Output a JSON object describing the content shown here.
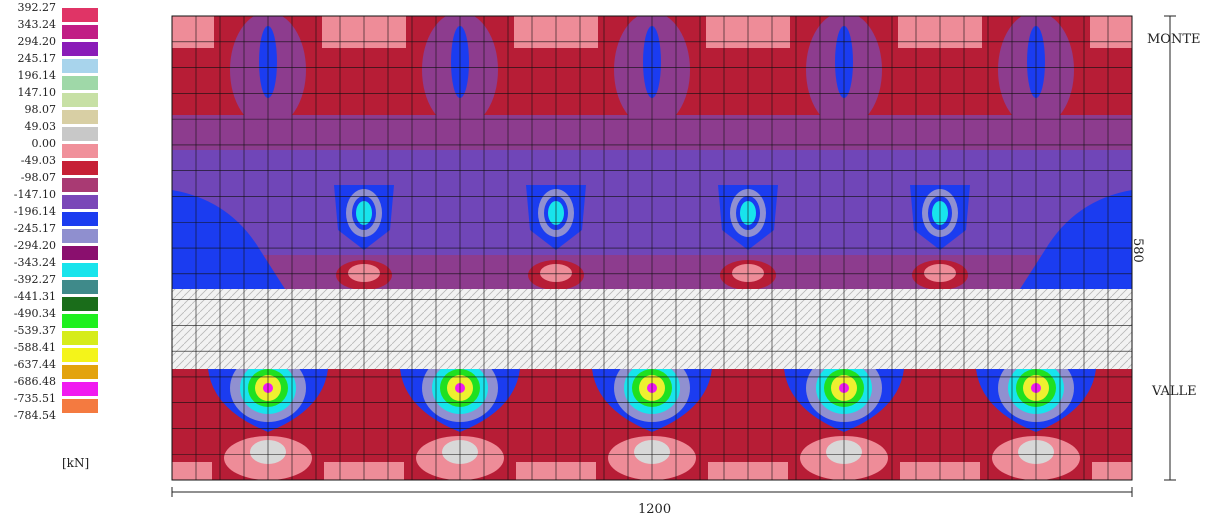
{
  "legend": {
    "unit": "[kN]",
    "entries": [
      {
        "value": "392.27",
        "color": "#e03466"
      },
      {
        "value": "343.24",
        "color": "#c11d85"
      },
      {
        "value": "294.20",
        "color": "#8a1cb8"
      },
      {
        "value": "245.17",
        "color": "#a8d4ec"
      },
      {
        "value": "196.14",
        "color": "#9fd8a8"
      },
      {
        "value": "147.10",
        "color": "#c7e0a5"
      },
      {
        "value": "98.07",
        "color": "#d8cfa4"
      },
      {
        "value": "49.03",
        "color": "#c8c8c8"
      },
      {
        "value": "0.00",
        "color": "#f0909a"
      },
      {
        "value": "-49.03",
        "color": "#c62036"
      },
      {
        "value": "-98.07",
        "color": "#a93a73"
      },
      {
        "value": "-147.10",
        "color": "#7a47b8"
      },
      {
        "value": "-196.14",
        "color": "#1b3cf0"
      },
      {
        "value": "-245.17",
        "color": "#8f8fcf"
      },
      {
        "value": "-294.20",
        "color": "#8a0f6e"
      },
      {
        "value": "-343.24",
        "color": "#18e4ec"
      },
      {
        "value": "-392.27",
        "color": "#3f8a8a"
      },
      {
        "value": "-441.31",
        "color": "#1a6d1a"
      },
      {
        "value": "-490.34",
        "color": "#1ef01e"
      },
      {
        "value": "-539.37",
        "color": "#d6ec1a"
      },
      {
        "value": "-588.41",
        "color": "#f4f41a"
      },
      {
        "value": "-637.44",
        "color": "#e3a30e"
      },
      {
        "value": "-686.48",
        "color": "#f01af0"
      },
      {
        "value": "-735.51",
        "color": "#f47a40"
      },
      {
        "value": "-784.54",
        "color": "#f01818"
      }
    ]
  },
  "plate": {
    "label_top": "MONTE",
    "label_bottom": "VALLE",
    "height_dim": "580",
    "width_dim": "1200"
  },
  "colors": {
    "base": "#b71d36",
    "mid": "#8d3c8e",
    "band": "#7046b8",
    "blue": "#1b3cf0",
    "light": "#9090d0",
    "cyan": "#18e4ec",
    "pink": "#ee8c98",
    "grey": "#d8d8d8",
    "yellow": "#eef030",
    "green": "#20e020",
    "magenta": "#f01af0",
    "hatch": "#f2f2f2",
    "grid": "#111111"
  }
}
